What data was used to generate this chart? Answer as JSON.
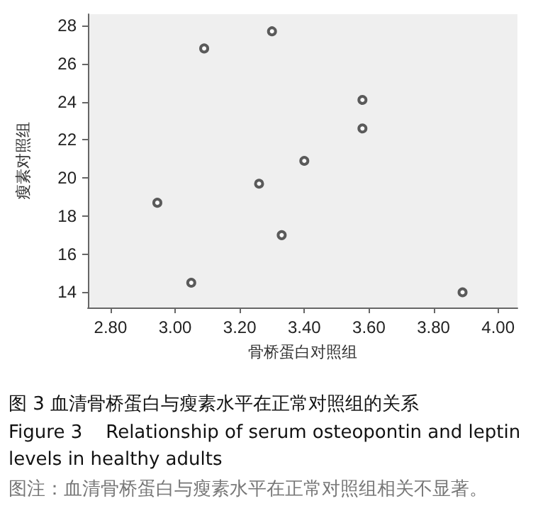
{
  "chart_data": {
    "type": "scatter",
    "xlabel": "骨桥蛋白对照组",
    "ylabel": "瘦素对照组",
    "x": [
      2.945,
      3.09,
      3.3,
      3.58,
      3.58,
      3.4,
      3.26,
      3.33,
      3.05,
      3.89
    ],
    "values": [
      18.7,
      26.8,
      27.7,
      24.1,
      22.6,
      20.9,
      19.7,
      17.0,
      14.5,
      14.0
    ],
    "color": "#333333",
    "marker": "circle",
    "grid": false,
    "xlim": [
      2.73,
      4.06
    ],
    "ylim": [
      13.2,
      28.6
    ],
    "xticks": [
      {
        "value": 2.8,
        "label": "2.80"
      },
      {
        "value": 3.0,
        "label": "3.00"
      },
      {
        "value": 3.2,
        "label": "3.20"
      },
      {
        "value": 3.4,
        "label": "3.40"
      },
      {
        "value": 3.6,
        "label": "3.60"
      },
      {
        "value": 3.8,
        "label": "3.80"
      },
      {
        "value": 4.0,
        "label": "4.00"
      }
    ],
    "yticks": [
      14,
      16,
      18,
      20,
      22,
      24,
      26,
      28
    ],
    "annotations": [
      "图 3 血清骨桥蛋白与瘦素水平在正常对照组的关系",
      "Figure 3    Relationship of serum osteopontin and leptin levels in healthy adults",
      "图注：血清骨桥蛋白与瘦素水平在正常对照组相关不显著。"
    ]
  }
}
